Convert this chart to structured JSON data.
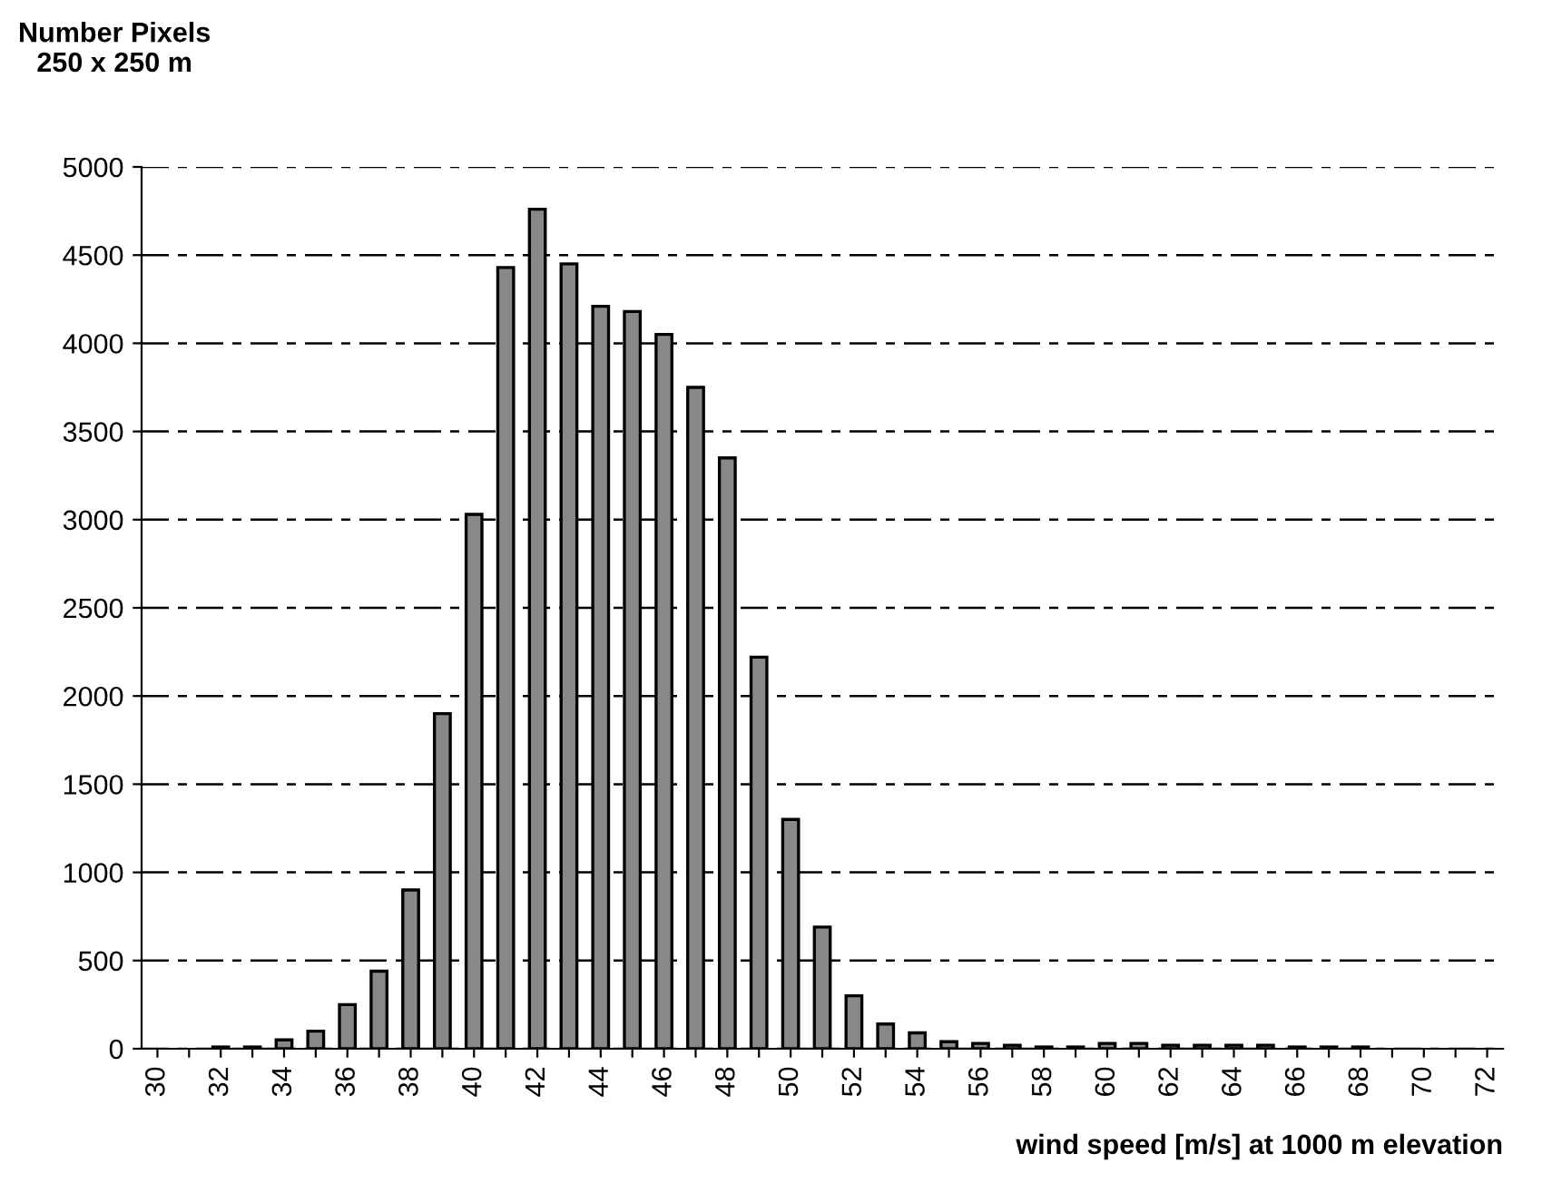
{
  "chart_data": {
    "type": "bar",
    "ylabel": "Number Pixels\n250 x 250 m",
    "xlabel": "wind speed [m/s] at 1000 m elevation",
    "categories": [
      "30",
      null,
      "32",
      null,
      "34",
      null,
      "36",
      null,
      "38",
      null,
      "40",
      null,
      "42",
      null,
      "44",
      null,
      "46",
      null,
      "48",
      null,
      "50",
      null,
      "52",
      null,
      "54",
      null,
      "56",
      null,
      "58",
      null,
      "60",
      null,
      "62",
      null,
      "64",
      null,
      "66",
      null,
      "68",
      null,
      "70",
      null,
      "72"
    ],
    "values": [
      null,
      null,
      10,
      10,
      50,
      100,
      250,
      440,
      900,
      1900,
      3030,
      4430,
      4760,
      4450,
      4210,
      4180,
      4050,
      3750,
      3350,
      2220,
      1300,
      690,
      300,
      140,
      90,
      40,
      30,
      20,
      10,
      10,
      30,
      30,
      20,
      20,
      20,
      20,
      10,
      10,
      10,
      null,
      null,
      null,
      null
    ],
    "color": "#888888",
    "ylim": [
      0,
      5000
    ],
    "yticks": [
      0,
      500,
      1000,
      1500,
      2000,
      2500,
      3000,
      3500,
      4000,
      4500,
      5000
    ],
    "grid": "y"
  }
}
